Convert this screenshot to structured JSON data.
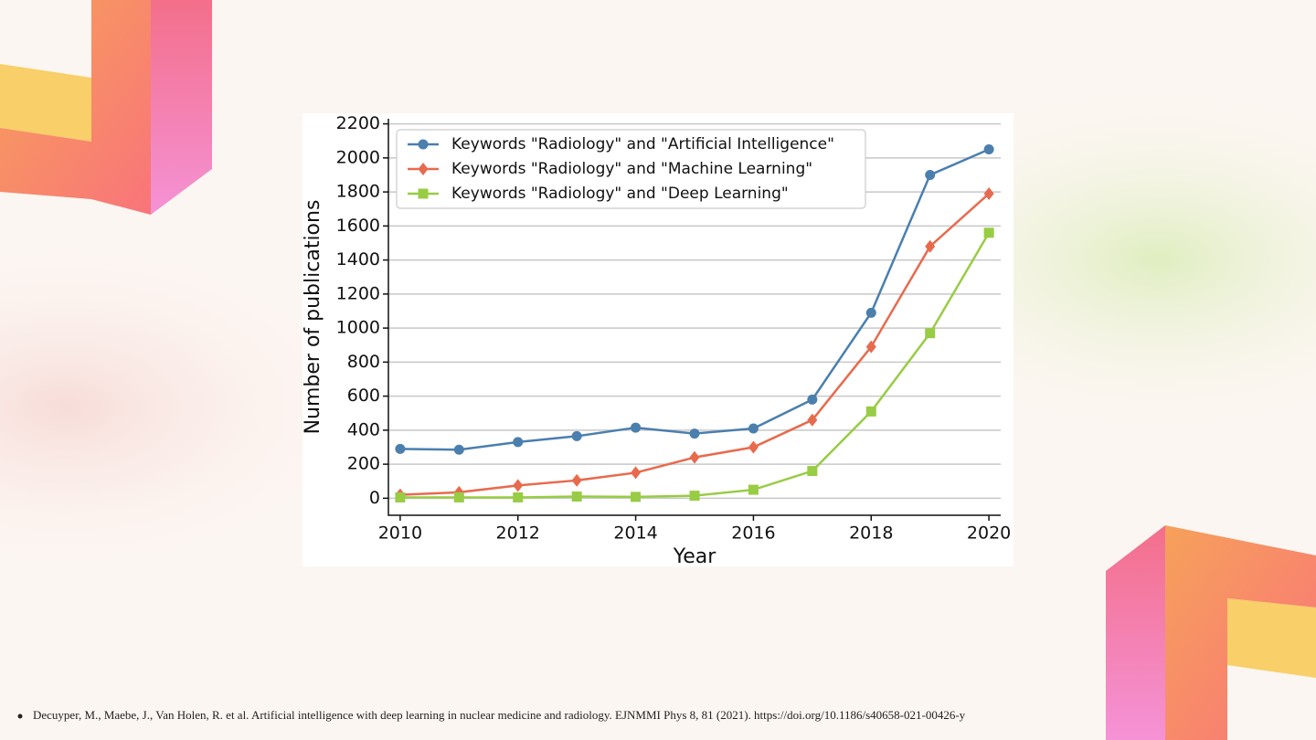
{
  "chart_data": {
    "type": "line",
    "xlabel": "Year",
    "ylabel": "Number of publications",
    "x": [
      2010,
      2011,
      2012,
      2013,
      2014,
      2015,
      2016,
      2017,
      2018,
      2019,
      2020
    ],
    "series": [
      {
        "name": "Keywords \"Radiology\" and \"Artificial Intelligence\"",
        "color": "#4a7fae",
        "marker": "circle",
        "values": [
          290,
          285,
          330,
          365,
          415,
          380,
          410,
          580,
          1090,
          1900,
          2050
        ]
      },
      {
        "name": "Keywords \"Radiology\" and \"Machine Learning\"",
        "color": "#e86a4d",
        "marker": "diamond",
        "values": [
          20,
          35,
          75,
          105,
          150,
          240,
          300,
          460,
          890,
          1480,
          1790
        ]
      },
      {
        "name": "Keywords \"Radiology\" and \"Deep Learning\"",
        "color": "#98cc44",
        "marker": "square",
        "values": [
          5,
          5,
          5,
          10,
          8,
          15,
          50,
          160,
          510,
          970,
          1560
        ]
      }
    ],
    "xlim": [
      2009.8,
      2020.2
    ],
    "xticks": [
      2010,
      2012,
      2014,
      2016,
      2018,
      2020
    ],
    "ylim": [
      -100,
      2230
    ],
    "yticks": [
      0,
      200,
      400,
      600,
      800,
      1000,
      1200,
      1400,
      1600,
      1800,
      2000,
      2200
    ],
    "grid": true,
    "legend": "upper left"
  },
  "footnote": "Decuyper, M., Maebe, J., Van Holen, R. et al. Artificial intelligence with deep learning in nuclear medicine and radiology. EJNMMI Phys 8, 81 (2021). https://doi.org/10.1186/s40658-021-00426-y"
}
